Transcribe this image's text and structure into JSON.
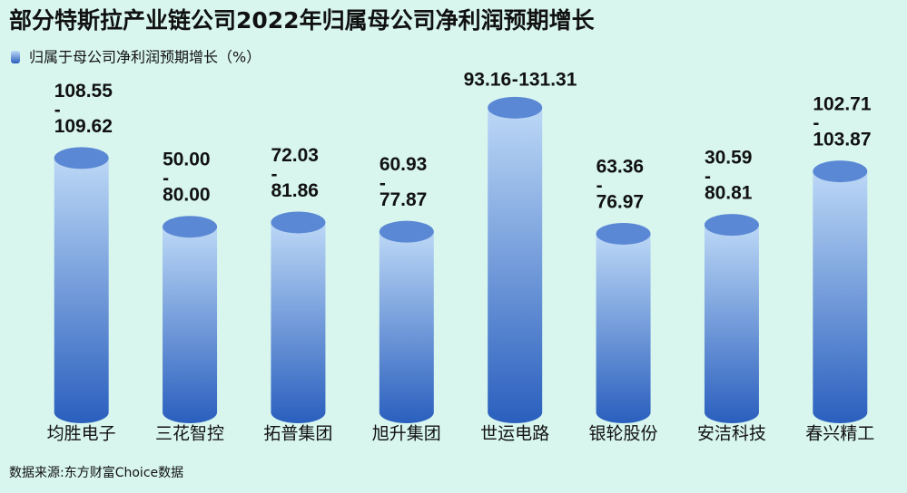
{
  "chart_data": {
    "type": "range-cylinder",
    "title": "部分特斯拉产业链公司2022年归属母公司净利润预期增长",
    "source": "数据来源:东方财富Choice数据",
    "range_separator": "-",
    "categories": [
      "均胜电子",
      "三花智控",
      "拓普集团",
      "旭升集团",
      "世运电路",
      "银轮股份",
      "安洁科技",
      "春兴精工"
    ],
    "series": [
      {
        "name": "归属于母公司净利润预期增长（%）",
        "color": "#3a6fc9",
        "values": [
          [
            108.55,
            109.62
          ],
          [
            50.0,
            80.0
          ],
          [
            72.03,
            81.86
          ],
          [
            60.93,
            77.87
          ],
          [
            93.16,
            131.31
          ],
          [
            63.36,
            76.97
          ],
          [
            30.59,
            80.81
          ],
          [
            102.71,
            103.87
          ]
        ],
        "value_labels": [
          [
            "108.55",
            "109.62"
          ],
          [
            "50.00",
            "80.00"
          ],
          [
            "72.03",
            "81.86"
          ],
          [
            "60.93",
            "77.87"
          ],
          [
            "93.16",
            "131.31"
          ],
          [
            "63.36",
            "76.97"
          ],
          [
            "30.59",
            "80.81"
          ],
          [
            "102.71",
            "103.87"
          ]
        ]
      }
    ]
  }
}
